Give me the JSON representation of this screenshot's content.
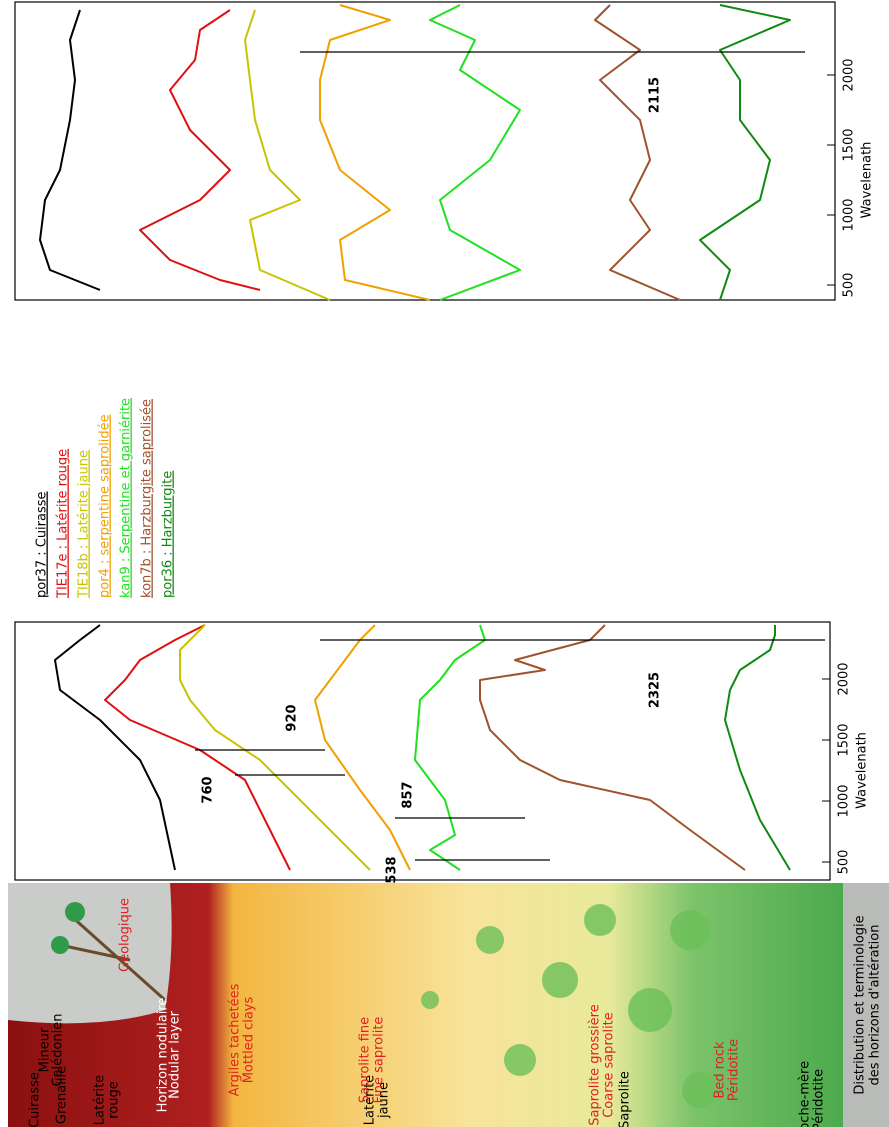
{
  "legend": [
    {
      "text": "por37 : Cuirasse",
      "color": "#000000"
    },
    {
      "text": "TIE17e : Latérite rouge",
      "color": "#e01010"
    },
    {
      "text": "TIE18b : Latérite jaune",
      "color": "#c8c400"
    },
    {
      "text": "por4 : serpentine saprolidée",
      "color": "#f0a000"
    },
    {
      "text": "kan9 : Serpentine et garniérite",
      "color": "#20e020"
    },
    {
      "text": "kon7b : Harzburgite saprolisée",
      "color": "#a0522d"
    },
    {
      "text": "por36 : Harzburgite",
      "color": "#108a10"
    }
  ],
  "panels": [
    {
      "ticks": [
        "500",
        "1000",
        "1500",
        "2000"
      ],
      "axis_label": "Wavelenath",
      "annotations": [
        "2115"
      ]
    },
    {
      "ticks": [
        "500",
        "1000",
        "1500",
        "2000"
      ],
      "axis_label": "Wavelenath",
      "annotations": [
        "760",
        "920",
        "538",
        "857",
        "2325"
      ]
    }
  ],
  "profile": {
    "mineur": [
      "Mineur",
      "Calédonien"
    ],
    "geologique": "Géologique",
    "cuirasse": "Cuirasse",
    "grenaille": "Grenaille",
    "nodular": [
      "Horizon nodulaire",
      "Nodular layer"
    ],
    "laterite_rouge": [
      "Latérite",
      "rouge"
    ],
    "mottled": [
      "Argiles tachetées",
      "Mottled clays"
    ],
    "laterite_jaune": [
      "Latérite",
      "jaune"
    ],
    "fine": [
      "Saprolite fine",
      "Fine saprolite"
    ],
    "coarse": [
      "Saprolite grossière",
      "Coarse saprolite"
    ],
    "saprolite": "Saprolite",
    "bedrock": [
      "Bed rock",
      "Péridotite"
    ],
    "roche": [
      "Roche-mère",
      "Péridotite"
    ],
    "caption": [
      "Distribution et terminologie",
      "des horizons d'altération"
    ]
  }
}
